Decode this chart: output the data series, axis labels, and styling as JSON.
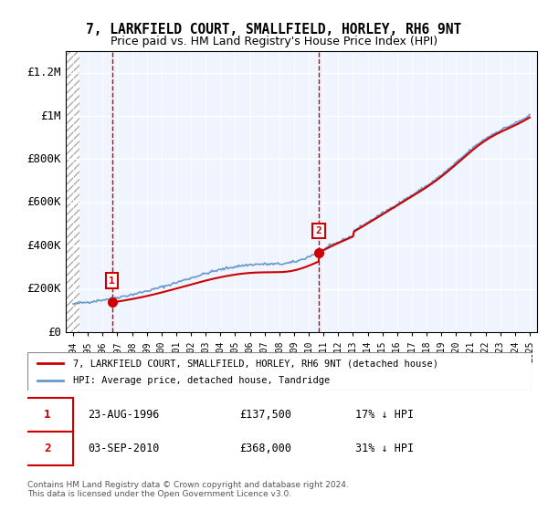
{
  "title": "7, LARKFIELD COURT, SMALLFIELD, HORLEY, RH6 9NT",
  "subtitle": "Price paid vs. HM Land Registry's House Price Index (HPI)",
  "ylabel": "",
  "ylim": [
    0,
    1300000
  ],
  "yticks": [
    0,
    200000,
    400000,
    600000,
    800000,
    1000000,
    1200000
  ],
  "ytick_labels": [
    "£0",
    "£200K",
    "£400K",
    "£600K",
    "£800K",
    "£1M",
    "£1.2M"
  ],
  "xlim_start": 1993.5,
  "xlim_end": 2025.5,
  "purchase1_year": 1996.644,
  "purchase1_price": 137500,
  "purchase2_year": 2010.671,
  "purchase2_price": 368000,
  "purchase1_label": "1",
  "purchase2_label": "2",
  "hpi_line_color": "#6699cc",
  "price_line_color": "#cc0000",
  "vline_color": "#cc0000",
  "hatch_color": "#cccccc",
  "legend_label_price": "7, LARKFIELD COURT, SMALLFIELD, HORLEY, RH6 9NT (detached house)",
  "legend_label_hpi": "HPI: Average price, detached house, Tandridge",
  "annotation1_date": "23-AUG-1996",
  "annotation1_price": "£137,500",
  "annotation1_hpi": "17% ↓ HPI",
  "annotation2_date": "03-SEP-2010",
  "annotation2_price": "£368,000",
  "annotation2_hpi": "31% ↓ HPI",
  "footer_text": "Contains HM Land Registry data © Crown copyright and database right 2024.\nThis data is licensed under the Open Government Licence v3.0.",
  "background_color": "#ffffff",
  "plot_bg_color": "#f0f4ff"
}
